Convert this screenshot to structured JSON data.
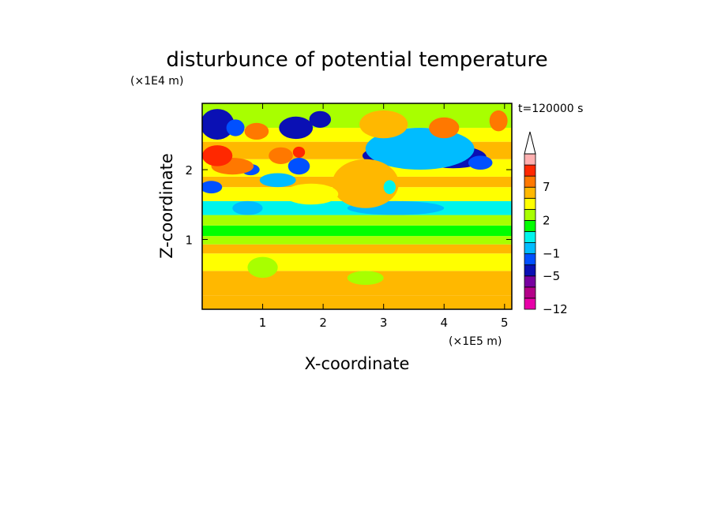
{
  "chart_data": {
    "type": "heatmap",
    "title": "disturbunce of potential temperature",
    "time_label": "t=120000 s",
    "xlabel": "X-coordinate",
    "ylabel": "Z-coordinate",
    "x_scale_label": "(×1E5 m)",
    "y_scale_label": "(×1E4 m)",
    "xlim": [
      0,
      5.12
    ],
    "ylim": [
      0,
      2.95
    ],
    "x_ticks": [
      1,
      2,
      3,
      4,
      5
    ],
    "x_tick_labels": [
      "1",
      "2",
      "3",
      "4",
      "5"
    ],
    "y_ticks": [
      1,
      2
    ],
    "y_tick_labels": [
      "1",
      "2"
    ],
    "colorbar": {
      "levels": [
        -12,
        -9,
        -7,
        -5,
        -3,
        -1,
        0,
        1,
        2,
        3,
        5,
        7,
        9,
        11
      ],
      "labeled": [
        {
          "value": 7,
          "label": "7"
        },
        {
          "value": 2,
          "label": "2"
        },
        {
          "value": -1,
          "label": "−1"
        },
        {
          "value": -5,
          "label": "−5"
        },
        {
          "value": -12,
          "label": "−12"
        }
      ],
      "colors": [
        "#e800a8",
        "#b40088",
        "#7800a0",
        "#0a10b4",
        "#0050ff",
        "#00bcff",
        "#00f4ec",
        "#00ff00",
        "#a8ff00",
        "#ffff00",
        "#ffb800",
        "#ff7800",
        "#ff2800",
        "#ffb0b0"
      ],
      "extend": "max"
    },
    "features": [
      {
        "cx": 0.25,
        "cz": 2.65,
        "rx": 0.28,
        "rz": 0.22,
        "level": 3
      },
      {
        "cx": 0.55,
        "cz": 2.6,
        "rx": 0.15,
        "rz": 0.12,
        "level": 4
      },
      {
        "cx": 1.55,
        "cz": 2.6,
        "rx": 0.28,
        "rz": 0.16,
        "level": 3
      },
      {
        "cx": 1.95,
        "cz": 2.72,
        "rx": 0.18,
        "rz": 0.12,
        "level": 3
      },
      {
        "cx": 0.15,
        "cz": 1.75,
        "rx": 0.18,
        "rz": 0.09,
        "level": 4
      },
      {
        "cx": 0.75,
        "cz": 1.45,
        "rx": 0.25,
        "rz": 0.1,
        "level": 5
      },
      {
        "cx": 1.25,
        "cz": 1.85,
        "rx": 0.3,
        "rz": 0.1,
        "level": 5
      },
      {
        "cx": 0.8,
        "cz": 2.0,
        "rx": 0.15,
        "rz": 0.08,
        "level": 4
      },
      {
        "cx": 1.6,
        "cz": 2.05,
        "rx": 0.18,
        "rz": 0.12,
        "level": 4
      },
      {
        "cx": 3.25,
        "cz": 2.2,
        "rx": 0.6,
        "rz": 0.15,
        "level": 3
      },
      {
        "cx": 4.15,
        "cz": 2.18,
        "rx": 0.55,
        "rz": 0.16,
        "level": 3
      },
      {
        "cx": 4.6,
        "cz": 2.1,
        "rx": 0.2,
        "rz": 0.1,
        "level": 4
      },
      {
        "cx": 3.6,
        "cz": 2.3,
        "rx": 0.9,
        "rz": 0.3,
        "level": 5
      },
      {
        "cx": 3.2,
        "cz": 1.45,
        "rx": 0.8,
        "rz": 0.1,
        "level": 5
      },
      {
        "cx": 1.3,
        "cz": 2.2,
        "rx": 0.2,
        "rz": 0.12,
        "level": 11
      },
      {
        "cx": 0.5,
        "cz": 2.05,
        "rx": 0.35,
        "rz": 0.12,
        "level": 11
      },
      {
        "cx": 0.25,
        "cz": 2.2,
        "rx": 0.25,
        "rz": 0.15,
        "level": 12
      },
      {
        "cx": 1.6,
        "cz": 2.25,
        "rx": 0.1,
        "rz": 0.08,
        "level": 12
      },
      {
        "cx": 0.9,
        "cz": 2.55,
        "rx": 0.2,
        "rz": 0.12,
        "level": 11
      },
      {
        "cx": 4.0,
        "cz": 2.6,
        "rx": 0.25,
        "rz": 0.15,
        "level": 11
      },
      {
        "cx": 4.9,
        "cz": 2.7,
        "rx": 0.15,
        "rz": 0.15,
        "level": 11
      },
      {
        "cx": 3.0,
        "cz": 2.65,
        "rx": 0.4,
        "rz": 0.2,
        "level": 10
      },
      {
        "cx": 2.7,
        "cz": 1.8,
        "rx": 0.55,
        "rz": 0.35,
        "level": 10
      },
      {
        "cx": 1.8,
        "cz": 1.65,
        "rx": 0.45,
        "rz": 0.15,
        "level": 9
      },
      {
        "cx": 3.1,
        "cz": 1.75,
        "rx": 0.1,
        "rz": 0.1,
        "level": 6
      },
      {
        "cx": 1.0,
        "cz": 0.6,
        "rx": 0.25,
        "rz": 0.15,
        "level": 8
      },
      {
        "cx": 2.7,
        "cz": 0.45,
        "rx": 0.3,
        "rz": 0.1,
        "level": 8
      }
    ]
  }
}
